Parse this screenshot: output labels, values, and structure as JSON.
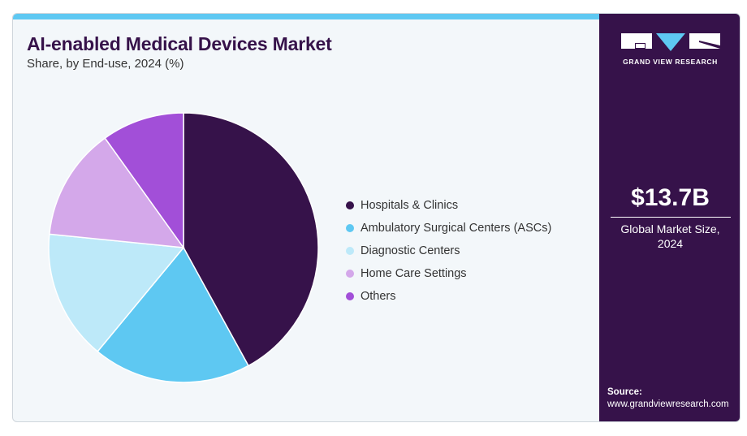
{
  "title": "AI-enabled Medical Devices Market",
  "subtitle": "Share, by End-use, 2024 (%)",
  "chart_data": {
    "type": "pie",
    "title": "AI-enabled Medical Devices Market",
    "subtitle": "Share, by End-use, 2024 (%)",
    "categories": [
      "Hospitals & Clinics",
      "Ambulatory Surgical Centers (ASCs)",
      "Diagnostic Centers",
      "Home Care Settings",
      "Others"
    ],
    "values": [
      42.0,
      19.0,
      15.6,
      13.5,
      9.9
    ],
    "colors": [
      "#36124a",
      "#5ec8f2",
      "#bde9f9",
      "#d4a8ea",
      "#a24fd8"
    ],
    "legend_position": "right"
  },
  "sidebar": {
    "brand": "GRAND VIEW RESEARCH",
    "market_size": "$13.7B",
    "market_size_label_1": "Global Market Size,",
    "market_size_label_2": "2024",
    "source_label": "Source:",
    "source_url": "www.grandviewresearch.com"
  }
}
